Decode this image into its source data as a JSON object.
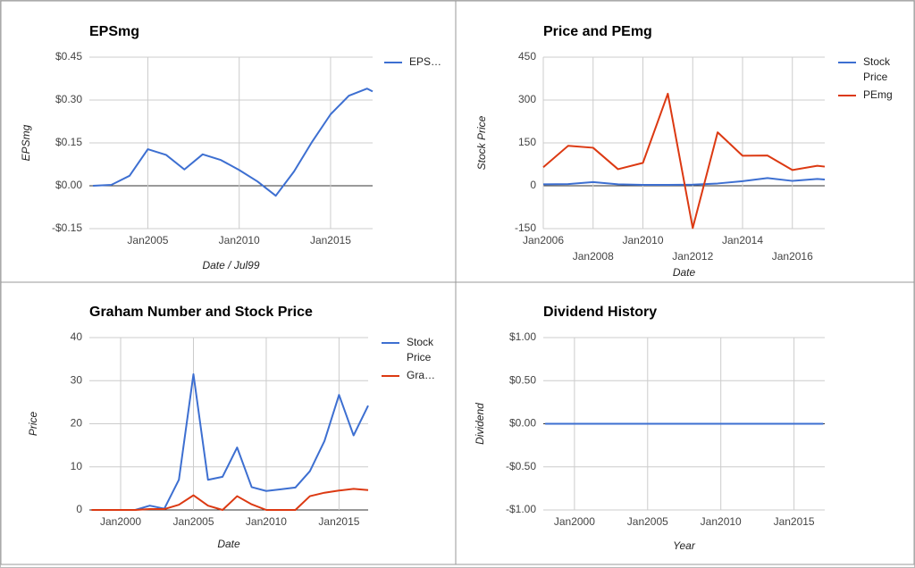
{
  "chart_data": [
    {
      "type": "line",
      "title": "EPSmg",
      "ylabel": "EPSmg",
      "xlabel": "Date / Jul99",
      "legend": "right",
      "x": [
        2002,
        2003,
        2004,
        2005,
        2006,
        2007,
        2008,
        2009,
        2010,
        2011,
        2012,
        2013,
        2014,
        2015,
        2016,
        2017,
        2017.3
      ],
      "series": [
        {
          "name": "EPS…",
          "color": "#3d6fd1",
          "values": [
            0,
            0.003,
            0.035,
            0.128,
            0.108,
            0.057,
            0.11,
            0.09,
            0.055,
            0.015,
            -0.035,
            0.05,
            0.155,
            0.25,
            0.315,
            0.34,
            0.33
          ]
        }
      ],
      "xlim": [
        2001.8,
        2017.3
      ],
      "ylim": [
        -0.15,
        0.45
      ],
      "xticks": [
        {
          "value": 2005,
          "label": "Jan2005"
        },
        {
          "value": 2010,
          "label": "Jan2010"
        },
        {
          "value": 2015,
          "label": "Jan2015"
        }
      ],
      "yticks": [
        {
          "value": 0.45,
          "label": "$0.45"
        },
        {
          "value": 0.3,
          "label": "$0.30"
        },
        {
          "value": 0.15,
          "label": "$0.15"
        },
        {
          "value": 0,
          "label": "$0.00"
        },
        {
          "value": -0.15,
          "label": "-$0.15"
        }
      ],
      "grid": true
    },
    {
      "type": "line",
      "title": "Price and PEmg",
      "ylabel": "Stock Price",
      "xlabel": "Date",
      "legend": "right",
      "x": [
        2006,
        2007,
        2008,
        2009,
        2010,
        2011,
        2012,
        2013,
        2014,
        2015,
        2016,
        2017,
        2017.3
      ],
      "series": [
        {
          "name": "Stock Price",
          "color": "#3d6fd1",
          "values": [
            5,
            6,
            13,
            5,
            3,
            3,
            4,
            8,
            16,
            27,
            17,
            24,
            22
          ]
        },
        {
          "name": "PEmg",
          "color": "#dc3912",
          "values": [
            65,
            140,
            133,
            58,
            80,
            322,
            -148,
            187,
            105,
            106,
            55,
            70,
            67
          ]
        }
      ],
      "xlim": [
        2006,
        2017.3
      ],
      "ylim": [
        -150,
        450
      ],
      "xticks": [
        {
          "value": 2006,
          "label": "Jan2006"
        },
        {
          "value": 2008,
          "label": "Jan2008"
        },
        {
          "value": 2010,
          "label": "Jan2010"
        },
        {
          "value": 2012,
          "label": "Jan2012"
        },
        {
          "value": 2014,
          "label": "Jan2014"
        },
        {
          "value": 2016,
          "label": "Jan2016"
        }
      ],
      "yticks": [
        450,
        300,
        150,
        0,
        -150
      ],
      "grid": true
    },
    {
      "type": "line",
      "title": "Graham Number and Stock Price",
      "ylabel": "Price",
      "xlabel": "Date",
      "legend": "right",
      "x": [
        1998,
        1999,
        2000,
        2001,
        2002,
        2003,
        2004,
        2005,
        2006,
        2007,
        2008,
        2009,
        2010,
        2011,
        2012,
        2013,
        2014,
        2015,
        2016,
        2017
      ],
      "series": [
        {
          "name": "Stock Price",
          "color": "#3d6fd1",
          "values": [
            0,
            0,
            0,
            0,
            1,
            0.3,
            7,
            31.5,
            7,
            7.7,
            14.5,
            5.3,
            4.4,
            4.8,
            5.2,
            9,
            16,
            26.7,
            17.3,
            24.2
          ]
        },
        {
          "name": "Gra…",
          "color": "#dc3912",
          "values": [
            0,
            0,
            0,
            0,
            0.2,
            0.2,
            1.2,
            3.4,
            1,
            0,
            3.2,
            1.3,
            0,
            0,
            0,
            3.2,
            4,
            4.5,
            4.9,
            4.6
          ]
        }
      ],
      "xlim": [
        1997.85,
        2017
      ],
      "ylim": [
        0,
        40
      ],
      "xticks": [
        {
          "value": 2000,
          "label": "Jan2000"
        },
        {
          "value": 2005,
          "label": "Jan2005"
        },
        {
          "value": 2010,
          "label": "Jan2010"
        },
        {
          "value": 2015,
          "label": "Jan2015"
        }
      ],
      "yticks": [
        40,
        30,
        20,
        10,
        0
      ],
      "grid": true
    },
    {
      "type": "line",
      "title": "Dividend History",
      "ylabel": "Dividend",
      "xlabel": "Year",
      "x": [
        1998,
        1999,
        2000,
        2001,
        2002,
        2003,
        2004,
        2005,
        2006,
        2007,
        2008,
        2009,
        2010,
        2011,
        2012,
        2013,
        2014,
        2015,
        2016,
        2017
      ],
      "series": [
        {
          "color": "#3d6fd1",
          "values": [
            0,
            0,
            0,
            0,
            0,
            0,
            0,
            0,
            0,
            0,
            0,
            0,
            0,
            0,
            0,
            0,
            0,
            0,
            0,
            0
          ]
        }
      ],
      "xlim": [
        1997.87,
        2017.1
      ],
      "ylim": [
        -1,
        1
      ],
      "xticks": [
        {
          "value": 2000,
          "label": "Jan2000"
        },
        {
          "value": 2005,
          "label": "Jan2005"
        },
        {
          "value": 2010,
          "label": "Jan2010"
        },
        {
          "value": 2015,
          "label": "Jan2015"
        }
      ],
      "yticks": [
        {
          "value": 1,
          "label": "$1.00"
        },
        {
          "value": 0.5,
          "label": "$0.50"
        },
        {
          "value": 0,
          "label": "$0.00"
        },
        {
          "value": -0.5,
          "label": "-$0.50"
        },
        {
          "value": -1,
          "label": "-$1.00"
        }
      ],
      "grid": true
    }
  ]
}
